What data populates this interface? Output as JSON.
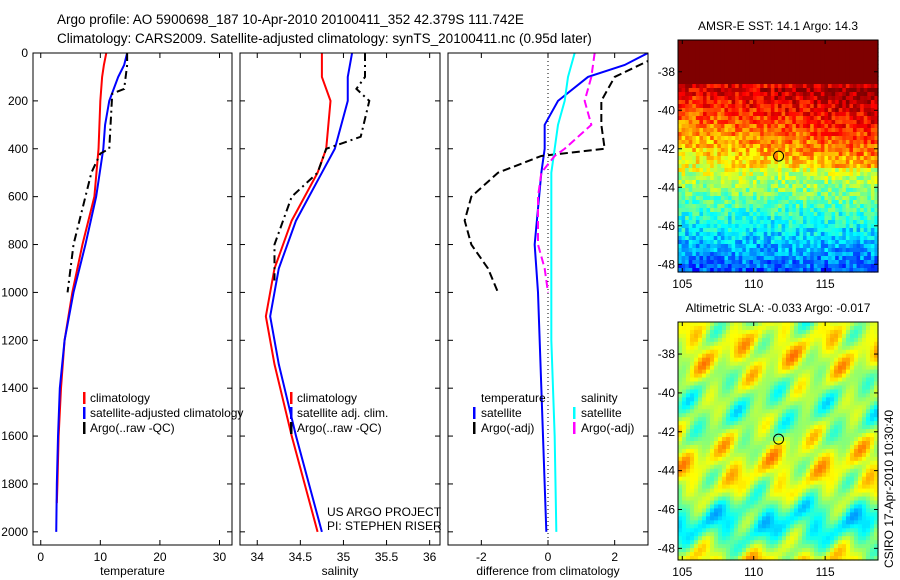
{
  "title": {
    "line1": "Argo profile: AO 5900698_187 10-Apr-2010 20100411_352 42.379S 111.742E",
    "line2": "Climatology: CARS2009. Satellite-adjusted climatology: synTS_20100411.nc (0.95d later)"
  },
  "colors": {
    "climatology": "#ff0000",
    "satellite": "#0000ff",
    "argo": "#000000",
    "sal_satellite": "#00ffff",
    "sal_argo": "#ff00ff"
  },
  "chart_data": [
    {
      "type": "line",
      "id": "temp",
      "xlabel": "temperature",
      "xlim": [
        -1.3,
        32.1
      ],
      "xticks": [
        0,
        10,
        20,
        30
      ],
      "ylim": [
        0,
        2055
      ],
      "yticks": [
        0,
        200,
        400,
        600,
        800,
        1000,
        1200,
        1400,
        1600,
        1800,
        2000
      ],
      "series": [
        {
          "name": "climatology",
          "color": "#ff0000",
          "dash": "",
          "depth": [
            0,
            50,
            100,
            200,
            400,
            600,
            800,
            1000,
            1200,
            1400,
            1600,
            1800,
            1880
          ],
          "values": [
            11,
            10.6,
            10.3,
            10,
            9.7,
            9,
            7,
            5.3,
            4,
            3.4,
            3,
            2.8,
            2.7
          ]
        },
        {
          "name": "satellite-adjusted climatology",
          "color": "#0000ff",
          "dash": "",
          "depth": [
            0,
            50,
            100,
            200,
            300,
            400,
            600,
            800,
            1000,
            1200,
            1400,
            1600,
            1800,
            2000
          ],
          "values": [
            14.5,
            14,
            13,
            11.5,
            10.8,
            10.5,
            9.3,
            7.5,
            5.5,
            4,
            3.2,
            2.9,
            2.7,
            2.6
          ]
        },
        {
          "name": "Argo(..raw -QC)",
          "color": "#000000",
          "dash": "8,4,2,4",
          "depth": [
            0,
            50,
            150,
            170,
            400,
            420,
            500,
            600,
            800,
            1000
          ],
          "values": [
            14.5,
            14.5,
            14,
            12,
            11.5,
            10,
            8.5,
            7.5,
            5.5,
            4.5
          ]
        }
      ]
    },
    {
      "type": "line",
      "id": "sal",
      "xlabel": "salinity",
      "xlim": [
        33.8,
        36.12
      ],
      "xticks": [
        34,
        34.5,
        35,
        35.5,
        36
      ],
      "ylim": [
        0,
        2055
      ],
      "yticks": [],
      "annotation": [
        "US ARGO PROJECT",
        "PI: STEPHEN RISER"
      ],
      "series": [
        {
          "name": "climatology",
          "color": "#ff0000",
          "dash": "",
          "depth": [
            0,
            100,
            200,
            400,
            500,
            700,
            900,
            1100,
            1300,
            1600,
            1800,
            2000
          ],
          "values": [
            34.75,
            34.75,
            34.85,
            34.8,
            34.7,
            34.4,
            34.2,
            34.1,
            34.2,
            34.4,
            34.55,
            34.7
          ]
        },
        {
          "name": "satellite adj. clim.",
          "color": "#0000ff",
          "dash": "",
          "depth": [
            0,
            100,
            200,
            400,
            500,
            700,
            900,
            1100,
            1300,
            1600,
            1800,
            2000
          ],
          "values": [
            35.1,
            35.05,
            35.05,
            34.9,
            34.75,
            34.45,
            34.25,
            34.15,
            34.25,
            34.45,
            34.6,
            34.75
          ]
        },
        {
          "name": "Argo(..raw -QC)",
          "color": "#000000",
          "dash": "8,4,2,4",
          "depth": [
            0,
            100,
            150,
            200,
            350,
            400,
            500,
            600,
            800,
            950
          ],
          "values": [
            35.25,
            35.25,
            35.15,
            35.3,
            35.2,
            34.8,
            34.7,
            34.4,
            34.2,
            34.2
          ]
        }
      ]
    },
    {
      "type": "line",
      "id": "diff",
      "xlabel": "difference from climatology",
      "xlim": [
        -3,
        3
      ],
      "xticks": [
        -2,
        0,
        2
      ],
      "ylim": [
        0,
        2055
      ],
      "yticks": [],
      "legend_headers": [
        "temperature",
        "salinity"
      ],
      "series": [
        {
          "name": "satellite",
          "group": "temperature",
          "color": "#0000ff",
          "dash": "",
          "depth": [
            0,
            50,
            100,
            200,
            300,
            400,
            500,
            800,
            1000,
            1400,
            2000
          ],
          "values": [
            3,
            2.3,
            1.2,
            0.3,
            -0.1,
            -0.1,
            -0.2,
            -0.4,
            -0.3,
            -0.2,
            -0.05
          ]
        },
        {
          "name": "Argo(-adj)",
          "group": "temperature",
          "color": "#000000",
          "dash": "8,4",
          "depth": [
            0,
            100,
            200,
            300,
            400,
            430,
            500,
            600,
            700,
            800,
            900,
            1000
          ],
          "values": [
            3.5,
            2,
            1.6,
            1.6,
            1.7,
            -0.2,
            -1.5,
            -2.3,
            -2.5,
            -2.3,
            -1.8,
            -1.5
          ]
        },
        {
          "name": "satellite",
          "group": "salinity",
          "color": "#00ffff",
          "dash": "",
          "depth": [
            0,
            100,
            200,
            300,
            500,
            800,
            1000,
            1200,
            1600,
            2000
          ],
          "values": [
            0.8,
            0.6,
            0.5,
            0.3,
            0.1,
            0.1,
            0.1,
            0.1,
            0.2,
            0.25
          ]
        },
        {
          "name": "Argo(-adj)",
          "group": "salinity",
          "color": "#ff00ff",
          "dash": "8,4",
          "depth": [
            0,
            100,
            200,
            300,
            400,
            430,
            500,
            600,
            800,
            900,
            1000
          ],
          "values": [
            1.4,
            1.3,
            1.1,
            1.3,
            0.5,
            0.2,
            -0.2,
            -0.3,
            -0.3,
            -0.1,
            0
          ]
        }
      ]
    },
    {
      "type": "heatmap",
      "id": "sst",
      "title": "AMSR-E SST: 14.1 Argo: 14.3",
      "xlim": [
        104.7,
        118.7
      ],
      "ylim": [
        -48.4,
        -36.35
      ],
      "xticks": [
        105,
        110,
        115
      ],
      "yticks": [
        -38,
        -40,
        -42,
        -44,
        -46,
        -48
      ],
      "marker": [
        111.742,
        -42.379
      ]
    },
    {
      "type": "heatmap",
      "id": "sla",
      "title": "Altimetric SLA: -0.033 Argo: -0.017",
      "xlim": [
        104.7,
        118.7
      ],
      "ylim": [
        -48.6,
        -36.35
      ],
      "xticks": [
        105,
        110,
        115
      ],
      "yticks": [
        -38,
        -40,
        -42,
        -44,
        -46,
        -48
      ],
      "marker": [
        111.742,
        -42.379
      ]
    }
  ],
  "footer": "CSIRO 17-Apr-2010 10:30:40"
}
